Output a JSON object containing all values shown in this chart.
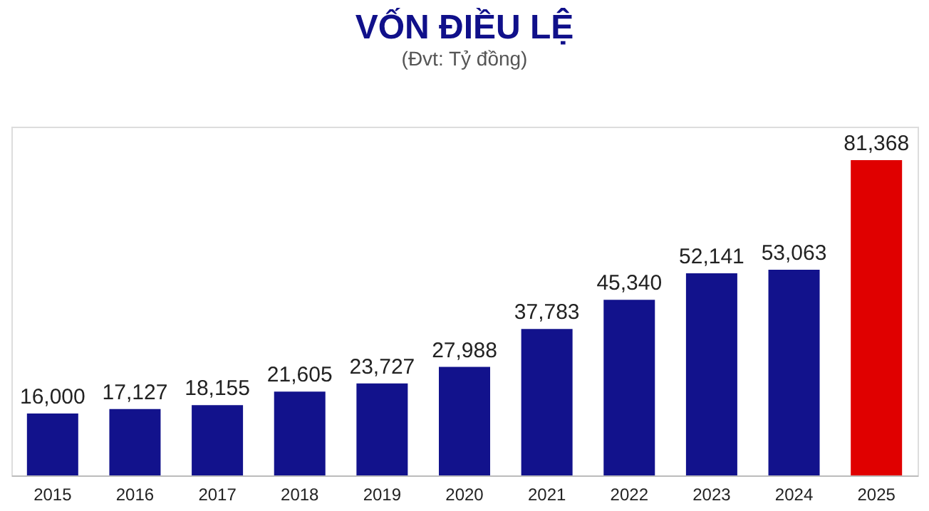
{
  "chart_data": {
    "type": "bar",
    "title": "VỐN ĐIỀU LỆ",
    "subtitle": "(Đvt: Tỷ đồng)",
    "categories": [
      "2015",
      "2016",
      "2017",
      "2018",
      "2019",
      "2020",
      "2021",
      "2022",
      "2023",
      "2024",
      "2025"
    ],
    "values": [
      16000,
      17127,
      18155,
      21605,
      23727,
      27988,
      37783,
      45340,
      52141,
      53063,
      81368
    ],
    "colors": [
      "#12128c",
      "#12128c",
      "#12128c",
      "#12128c",
      "#12128c",
      "#12128c",
      "#12128c",
      "#12128c",
      "#12128c",
      "#12128c",
      "#e00000"
    ],
    "value_labels": [
      "16,000",
      "17,127",
      "18,155",
      "21,605",
      "23,727",
      "27,988",
      "37,783",
      "45,340",
      "52,141",
      "53,063",
      "81,368"
    ],
    "grid": false,
    "tick_labels": "x"
  }
}
